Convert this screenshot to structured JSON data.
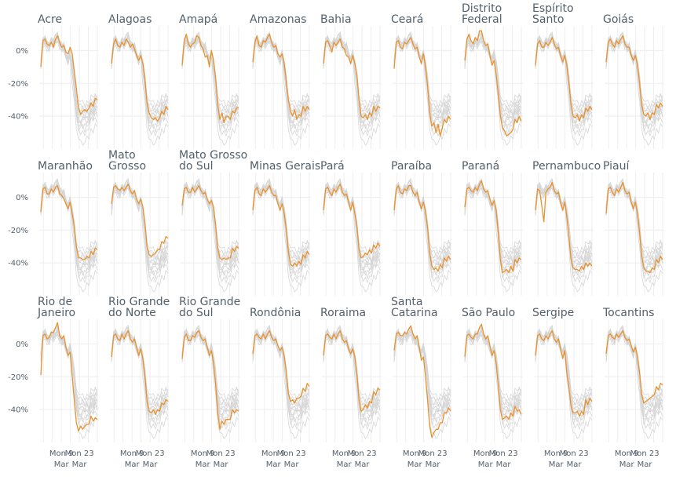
{
  "chart_data": {
    "type": "line",
    "layout": "small-multiples",
    "columns": 9,
    "ylim": [
      -60,
      15
    ],
    "y_ticks": [
      {
        "value": 0,
        "label": "0%"
      },
      {
        "value": -20,
        "label": "-20%"
      },
      {
        "value": -40,
        "label": "-40%"
      }
    ],
    "x_start": "2020-02-22",
    "x_end": "2020-04-06",
    "x_ticks": [
      {
        "date": "2020-03-09",
        "line1": "Mon 9",
        "line2": "Mar"
      },
      {
        "date": "2020-03-23",
        "line1": "Mon 23",
        "line2": "Mar"
      }
    ],
    "colors": {
      "highlight": "#e8922e",
      "background": "#d6d6d6",
      "grid": "#eeeeee",
      "text": "#53606b"
    },
    "panels": [
      {
        "title": [
          "Acre"
        ],
        "values": [
          -10,
          6,
          7,
          4,
          3,
          5,
          2,
          7,
          9,
          5,
          2,
          3,
          -1,
          -2,
          2,
          -2,
          -13,
          -23,
          -35,
          -39,
          -37,
          -36,
          -37,
          -35,
          -32,
          -34,
          -29,
          -30
        ],
        "base": [
          0,
          0,
          0
        ]
      },
      {
        "title": [
          "Alagoas"
        ],
        "values": [
          -8,
          4,
          7,
          3,
          2,
          5,
          3,
          7,
          5,
          2,
          4,
          1,
          -3,
          -6,
          -3,
          -8,
          -18,
          -32,
          -38,
          -41,
          -42,
          -41,
          -43,
          -41,
          -37,
          -39,
          -34,
          -36
        ],
        "base": [
          1,
          1,
          1
        ]
      },
      {
        "title": [
          "Amapá"
        ],
        "values": [
          -9,
          6,
          10,
          4,
          2,
          4,
          5,
          9,
          8,
          3,
          1,
          -4,
          -3,
          -10,
          0,
          -6,
          -17,
          -33,
          -42,
          -38,
          -44,
          -40,
          -40,
          -42,
          -37,
          -38,
          -35,
          -35
        ],
        "base": [
          2,
          2,
          2
        ]
      },
      {
        "title": [
          "Amazonas"
        ],
        "values": [
          -7,
          5,
          9,
          3,
          2,
          6,
          5,
          8,
          10,
          5,
          2,
          3,
          -2,
          -4,
          -2,
          -8,
          -19,
          -30,
          -37,
          -40,
          -36,
          -42,
          -39,
          -40,
          -34,
          -37,
          -34,
          -36
        ],
        "base": [
          0,
          1,
          2
        ]
      },
      {
        "title": [
          "Bahia"
        ],
        "values": [
          -8,
          5,
          6,
          3,
          -1,
          5,
          3,
          5,
          7,
          2,
          1,
          -3,
          -4,
          -8,
          -3,
          -8,
          -15,
          -30,
          -40,
          -41,
          -39,
          -42,
          -38,
          -40,
          -34,
          -37,
          -34,
          -35
        ],
        "base": [
          1,
          2,
          0
        ]
      },
      {
        "title": [
          "Ceará"
        ],
        "values": [
          -11,
          5,
          6,
          2,
          1,
          5,
          4,
          6,
          8,
          4,
          1,
          2,
          -4,
          -8,
          -2,
          -10,
          -22,
          -38,
          -46,
          -44,
          -50,
          -45,
          -52,
          -47,
          -42,
          -44,
          -40,
          -42
        ],
        "base": [
          2,
          0,
          1
        ]
      },
      {
        "title": [
          "Distrito",
          "Federal"
        ],
        "values": [
          -6,
          7,
          10,
          6,
          4,
          8,
          6,
          12,
          12,
          6,
          3,
          4,
          -3,
          -9,
          -6,
          -15,
          -27,
          -40,
          -47,
          -49,
          -52,
          -51,
          -50,
          -48,
          -42,
          -44,
          -40,
          -43
        ],
        "base": [
          0,
          2,
          1
        ]
      },
      {
        "title": [
          "Espírito",
          "Santo"
        ],
        "values": [
          -9,
          4,
          6,
          2,
          2,
          5,
          3,
          5,
          8,
          4,
          1,
          2,
          -3,
          -7,
          -3,
          -9,
          -20,
          -33,
          -40,
          -41,
          -39,
          -43,
          -39,
          -41,
          -35,
          -37,
          -34,
          -36
        ],
        "base": [
          1,
          0,
          2
        ]
      },
      {
        "title": [
          "Goiás"
        ],
        "values": [
          -7,
          5,
          7,
          4,
          2,
          6,
          4,
          7,
          9,
          4,
          2,
          2,
          -3,
          -6,
          -3,
          -9,
          -20,
          -33,
          -39,
          -40,
          -38,
          -42,
          -38,
          -39,
          -33,
          -35,
          -32,
          -34
        ],
        "base": [
          2,
          1,
          0
        ]
      },
      {
        "title": [
          "Maranhão"
        ],
        "values": [
          -9,
          5,
          6,
          2,
          2,
          5,
          3,
          6,
          7,
          2,
          1,
          -1,
          -4,
          -7,
          -3,
          -10,
          -18,
          -30,
          -37,
          -37,
          -38,
          -38,
          -36,
          -37,
          -33,
          -35,
          -31,
          -32
        ],
        "base": [
          0,
          0,
          1
        ]
      },
      {
        "title": [
          "Mato",
          "Grosso"
        ],
        "values": [
          -4,
          6,
          7,
          5,
          4,
          6,
          4,
          6,
          8,
          4,
          2,
          4,
          -1,
          -4,
          -1,
          -6,
          -16,
          -30,
          -35,
          -36,
          -35,
          -34,
          -32,
          -32,
          -27,
          -28,
          -24,
          -25
        ],
        "base": [
          1,
          1,
          2
        ]
      },
      {
        "title": [
          "Mato Grosso",
          "do Sul"
        ],
        "values": [
          -5,
          5,
          6,
          3,
          3,
          6,
          3,
          5,
          7,
          4,
          2,
          3,
          -1,
          -4,
          -2,
          -6,
          -17,
          -31,
          -37,
          -38,
          -37,
          -38,
          -37,
          -37,
          -31,
          -33,
          -30,
          -31
        ],
        "base": [
          2,
          2,
          0
        ]
      },
      {
        "title": [
          "Minas Gerais"
        ],
        "values": [
          -8,
          4,
          6,
          2,
          1,
          5,
          3,
          5,
          7,
          3,
          1,
          1,
          -4,
          -8,
          -4,
          -10,
          -20,
          -33,
          -41,
          -42,
          -40,
          -42,
          -39,
          -41,
          -35,
          -37,
          -33,
          -35
        ],
        "base": [
          0,
          2,
          0
        ]
      },
      {
        "title": [
          "Pará"
        ],
        "values": [
          -8,
          5,
          6,
          3,
          1,
          5,
          3,
          6,
          8,
          3,
          1,
          2,
          -3,
          -8,
          -3,
          -10,
          -18,
          -32,
          -37,
          -36,
          -34,
          -35,
          -32,
          -34,
          -29,
          -31,
          -28,
          -30
        ],
        "base": [
          1,
          0,
          1
        ]
      },
      {
        "title": [
          "Paraíba"
        ],
        "values": [
          -8,
          5,
          7,
          3,
          2,
          5,
          4,
          7,
          7,
          3,
          1,
          3,
          -3,
          -7,
          -3,
          -9,
          -19,
          -34,
          -42,
          -44,
          -43,
          -45,
          -41,
          -43,
          -37,
          -39,
          -36,
          -38
        ],
        "base": [
          2,
          1,
          2
        ]
      },
      {
        "title": [
          "Paraná"
        ],
        "values": [
          -6,
          5,
          6,
          4,
          3,
          6,
          4,
          8,
          10,
          5,
          3,
          4,
          -1,
          -5,
          -2,
          -8,
          -22,
          -38,
          -46,
          -45,
          -44,
          -46,
          -42,
          -45,
          -38,
          -40,
          -37,
          -38
        ],
        "base": [
          0,
          1,
          0
        ]
      },
      {
        "title": [
          "Pernambuco"
        ],
        "values": [
          -8,
          5,
          4,
          -5,
          -15,
          3,
          5,
          6,
          9,
          4,
          2,
          3,
          -3,
          -8,
          -3,
          -12,
          -25,
          -38,
          -43,
          -44,
          -44,
          -45,
          -42,
          -44,
          -40,
          -42,
          -40,
          -42
        ],
        "base": [
          1,
          2,
          1
        ]
      },
      {
        "title": [
          "Piauí"
        ],
        "values": [
          -10,
          5,
          6,
          3,
          1,
          5,
          3,
          6,
          9,
          4,
          2,
          3,
          -3,
          -7,
          -3,
          -10,
          -22,
          -36,
          -43,
          -45,
          -45,
          -46,
          -43,
          -44,
          -38,
          -40,
          -36,
          -38
        ],
        "base": [
          2,
          0,
          2
        ]
      },
      {
        "title": [
          "Rio de",
          "Janeiro"
        ],
        "values": [
          -19,
          5,
          6,
          3,
          4,
          7,
          7,
          10,
          13,
          5,
          3,
          5,
          -2,
          -7,
          -5,
          -20,
          -35,
          -48,
          -53,
          -50,
          -52,
          -50,
          -49,
          -49,
          -44,
          -47,
          -45,
          -46
        ],
        "base": [
          0,
          0,
          2
        ]
      },
      {
        "title": [
          "Rio Grande",
          "do Norte"
        ],
        "values": [
          -8,
          5,
          6,
          3,
          2,
          6,
          3,
          6,
          8,
          3,
          1,
          3,
          -2,
          -7,
          -3,
          -9,
          -20,
          -35,
          -41,
          -42,
          -40,
          -43,
          -40,
          -41,
          -36,
          -37,
          -34,
          -35
        ],
        "base": [
          1,
          1,
          0
        ]
      },
      {
        "title": [
          "Rio Grande",
          "do Sul"
        ],
        "values": [
          -9,
          4,
          6,
          2,
          2,
          5,
          4,
          7,
          8,
          4,
          2,
          3,
          -2,
          -7,
          -4,
          -12,
          -25,
          -42,
          -52,
          -47,
          -49,
          -46,
          -46,
          -46,
          -40,
          -42,
          -40,
          -41
        ],
        "base": [
          2,
          2,
          1
        ]
      },
      {
        "title": [
          "Rondônia"
        ],
        "values": [
          -6,
          5,
          6,
          4,
          3,
          6,
          3,
          6,
          8,
          4,
          2,
          3,
          -1,
          -4,
          -2,
          -7,
          -17,
          -30,
          -35,
          -34,
          -36,
          -33,
          -33,
          -32,
          -27,
          -29,
          -24,
          -26
        ],
        "base": [
          0,
          1,
          1
        ]
      },
      {
        "title": [
          "Roraima"
        ],
        "values": [
          -7,
          5,
          6,
          4,
          3,
          6,
          3,
          6,
          8,
          3,
          1,
          2,
          -3,
          -6,
          -3,
          -8,
          -19,
          -34,
          -41,
          -40,
          -37,
          -39,
          -35,
          -36,
          -29,
          -31,
          -27,
          -28
        ],
        "base": [
          1,
          0,
          0
        ]
      },
      {
        "title": [
          "Santa",
          "Catarina"
        ],
        "values": [
          -4,
          6,
          7,
          5,
          5,
          7,
          6,
          9,
          11,
          6,
          3,
          5,
          -2,
          -10,
          -8,
          -20,
          -35,
          -50,
          -57,
          -54,
          -52,
          -52,
          -48,
          -48,
          -42,
          -42,
          -39,
          -41
        ],
        "base": [
          2,
          1,
          1
        ]
      },
      {
        "title": [
          "São Paulo"
        ],
        "values": [
          -8,
          5,
          6,
          4,
          3,
          6,
          6,
          10,
          12,
          6,
          3,
          5,
          -1,
          -7,
          -4,
          -12,
          -26,
          -40,
          -46,
          -45,
          -44,
          -46,
          -42,
          -44,
          -38,
          -41,
          -40,
          -43
        ],
        "base": [
          0,
          2,
          2
        ]
      },
      {
        "title": [
          "Sergipe"
        ],
        "values": [
          -7,
          5,
          6,
          3,
          2,
          5,
          3,
          6,
          8,
          3,
          1,
          3,
          -3,
          -9,
          -4,
          -18,
          -27,
          -38,
          -42,
          -42,
          -41,
          -44,
          -41,
          -43,
          -34,
          -37,
          -33,
          -35
        ],
        "base": [
          1,
          1,
          0
        ]
      },
      {
        "title": [
          "Tocantins"
        ],
        "values": [
          -6,
          5,
          6,
          4,
          3,
          6,
          4,
          6,
          8,
          4,
          2,
          3,
          -1,
          -5,
          -2,
          -8,
          -18,
          -31,
          -36,
          -35,
          -34,
          -33,
          -32,
          -31,
          -26,
          -28,
          -24,
          -25
        ],
        "base": [
          2,
          0,
          0
        ]
      }
    ]
  }
}
